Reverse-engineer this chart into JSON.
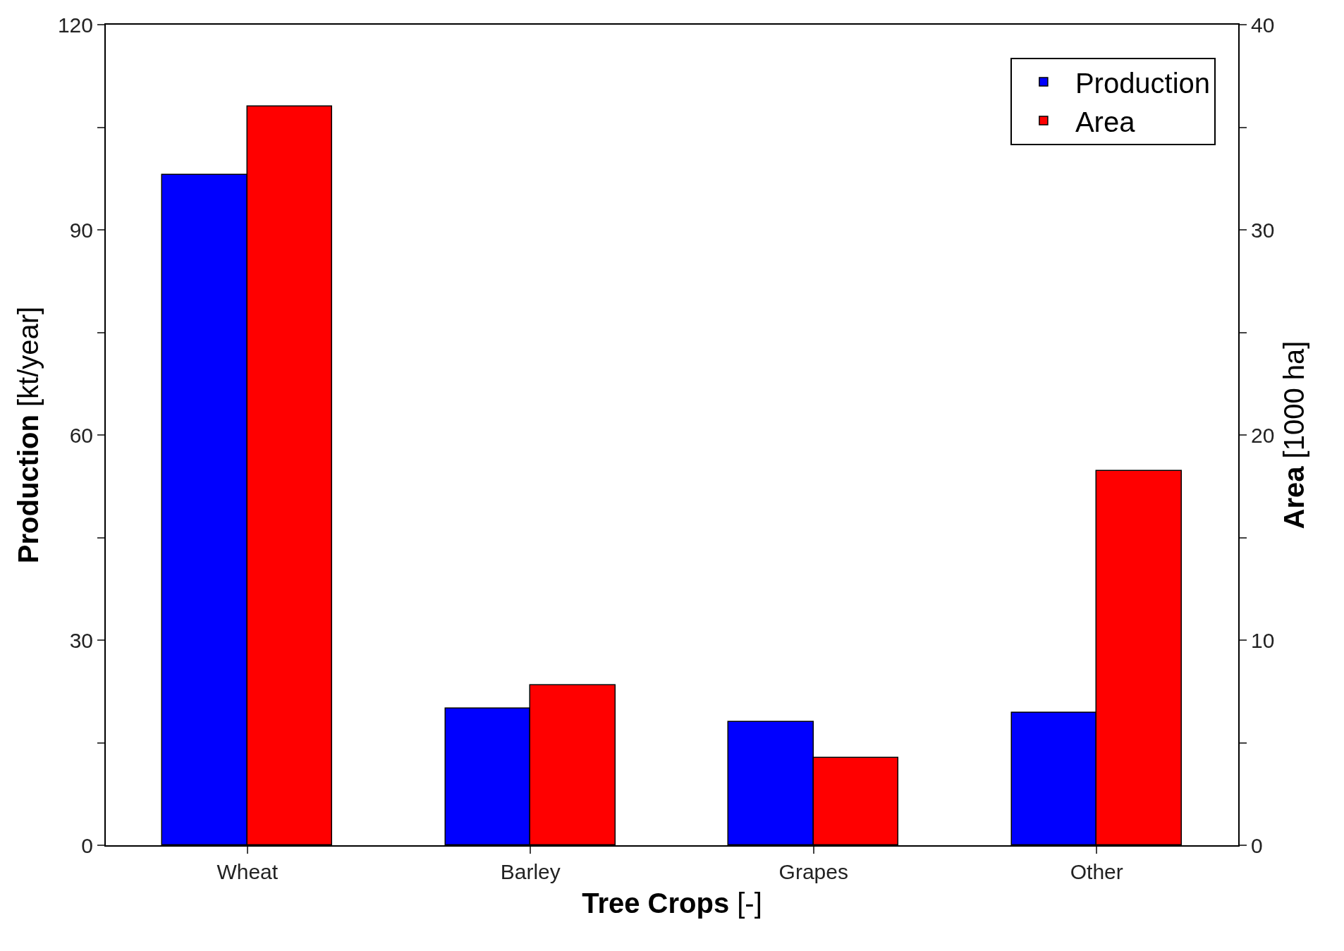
{
  "chart_data": {
    "type": "bar",
    "xlabel": "Tree Crops [-]",
    "ylabel": "Production [kt/year]",
    "y2label": "Area [1000 ha]",
    "categories": [
      "Wheat",
      "Barley",
      "Grapes",
      "Other"
    ],
    "series": [
      {
        "name": "Production",
        "color": "#0000ff",
        "values": [
          98,
          20,
          18,
          19.4
        ]
      },
      {
        "name": "Area",
        "color": "#ff0000",
        "values": [
          36,
          7.8,
          4.25,
          18.25
        ],
        "axis": "y2"
      }
    ],
    "ylim": [
      0,
      120
    ],
    "yticks": [
      0,
      {
        "value": 15,
        "label": null
      },
      30,
      {
        "value": 45,
        "label": null
      },
      60,
      {
        "value": 75,
        "label": null
      },
      90,
      {
        "value": 105,
        "label": null
      },
      120
    ],
    "y2lim": [
      0,
      40
    ],
    "y2ticks": [
      0,
      {
        "value": 5,
        "label": null
      },
      10,
      {
        "value": 15,
        "label": null
      },
      20,
      {
        "value": 25,
        "label": null
      },
      30,
      {
        "value": 35,
        "label": null
      },
      40
    ],
    "legend": "top right"
  }
}
